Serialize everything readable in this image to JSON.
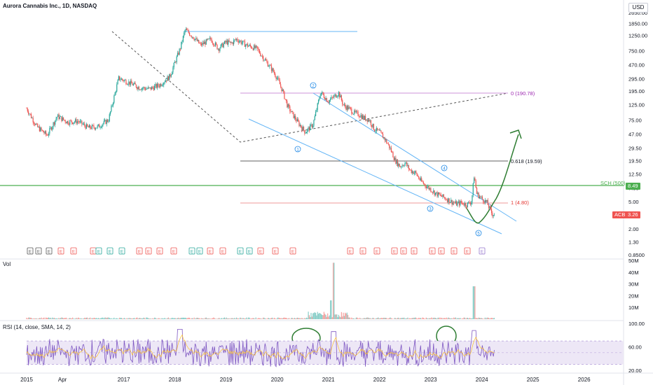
{
  "header": {
    "title": "Aurora Cannabis Inc., 1D, NASDAQ",
    "currency": "USD"
  },
  "price_axis_labels": [
    "2650.00",
    "1850.00",
    "1250.00",
    "750.00",
    "470.00",
    "295.00",
    "195.00",
    "125.00",
    "75.00",
    "47.00",
    "29.50",
    "19.50",
    "12.50",
    "7.80",
    "5.00",
    "3.20",
    "2.00",
    "1.30",
    "0.8500"
  ],
  "volume_axis_labels": [
    "50M",
    "40M",
    "30M",
    "20M",
    "10M"
  ],
  "rsi_axis_labels": [
    "100.00",
    "60.00",
    "20.00"
  ],
  "time_axis_labels": [
    "2015",
    "Apr",
    "2017",
    "2018",
    "2019",
    "2020",
    "2021",
    "2022",
    "2023",
    "2024",
    "2025",
    "2026"
  ],
  "panes": {
    "volume_label": "Vol",
    "rsi_label": "RSI (14, close, SMA, 14, 2)"
  },
  "annotations": {
    "fib_0": "0 (190.78)",
    "fib_0618": "0.618 (19.59)",
    "fib_1": "1 (4.80)",
    "sch_label": "SCH (500)",
    "sch_value": "8.49",
    "ticker_tag": "ACB",
    "ticker_price": "3.26",
    "wave_labels": [
      "1",
      "2",
      "3",
      "4",
      "5"
    ],
    "earnings_marker": "E"
  },
  "colors": {
    "up": "#26a69a",
    "down": "#ef5350",
    "green_line": "#4caf50",
    "channel": "#64b5f6",
    "fib_0": "#ce93d8",
    "fib_1": "#ef9a9a",
    "fib_0618": "#616161",
    "rsi_line": "#7e57c2",
    "rsi_band": "#ede7f6",
    "ticker_tag_bg": "#ef5350",
    "sch_tag_bg": "#4caf50"
  },
  "chart_data": {
    "type": "line",
    "title": "Aurora Cannabis Inc., 1D, NASDAQ",
    "y_scale": "log",
    "ylim": [
      0.85,
      2650
    ],
    "xlim": [
      2015.0,
      2026.9
    ],
    "series": [
      {
        "name": "ACB",
        "x": [
          2015.0,
          2015.2,
          2015.4,
          2015.6,
          2015.8,
          2016.0,
          2016.2,
          2016.4,
          2016.6,
          2016.8,
          2017.0,
          2017.2,
          2017.4,
          2017.6,
          2017.8,
          2018.0,
          2018.1,
          2018.25,
          2018.4,
          2018.6,
          2018.75,
          2018.9,
          2019.0,
          2019.1,
          2019.3,
          2019.5,
          2019.7,
          2019.8,
          2019.9,
          2020.0,
          2020.1,
          2020.2,
          2020.3,
          2020.45,
          2020.6,
          2020.75,
          2020.8,
          2020.9,
          2021.0,
          2021.1,
          2021.2,
          2021.3,
          2021.4,
          2021.5,
          2021.6,
          2021.7,
          2021.8,
          2021.9,
          2022.0,
          2022.1,
          2022.2,
          2022.3,
          2022.4,
          2022.5,
          2022.6,
          2022.7,
          2022.8,
          2022.9,
          2023.0,
          2023.1,
          2023.2,
          2023.3,
          2023.4,
          2023.5,
          2023.6,
          2023.7,
          2023.75,
          2023.8,
          2023.9,
          2024.0,
          2024.1
        ],
        "values": [
          110,
          60,
          45,
          85,
          70,
          72,
          58,
          60,
          75,
          300,
          260,
          220,
          210,
          240,
          320,
          800,
          1500,
          1200,
          900,
          1100,
          800,
          1000,
          950,
          1100,
          900,
          800,
          500,
          400,
          300,
          200,
          120,
          90,
          70,
          50,
          65,
          190,
          170,
          140,
          160,
          185,
          120,
          110,
          95,
          90,
          80,
          75,
          55,
          50,
          40,
          30,
          20,
          16,
          18,
          14,
          13,
          10,
          8.5,
          7.5,
          6.5,
          6.0,
          5.5,
          5.0,
          4.6,
          4.8,
          4.5,
          5.0,
          12,
          6.5,
          5.5,
          4.8,
          3.3
        ]
      }
    ],
    "volume": {
      "unit": "M",
      "ylim": [
        0,
        50
      ]
    },
    "rsi": {
      "ylim": [
        20,
        100
      ],
      "bands": [
        30,
        70
      ]
    }
  }
}
